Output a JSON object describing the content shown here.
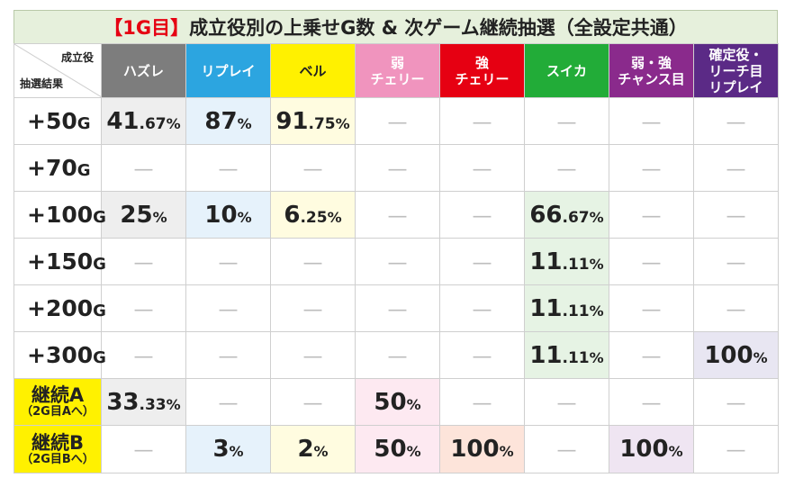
{
  "title": {
    "tag": "【1G目】",
    "text": "成立役別の上乗せG数 & 次ゲーム継続抽選（全設定共通）"
  },
  "corner": {
    "top_label": "成立役",
    "bottom_label": "抽選結果"
  },
  "columns": [
    {
      "label": "ハズレ",
      "bg": "#7d7d7d",
      "fg": "#ffffff",
      "cell_bg": "#eeeeee"
    },
    {
      "label": "リプレイ",
      "bg": "#2ca5e0",
      "fg": "#ffffff",
      "cell_bg": "#e6f2fb"
    },
    {
      "label": "ベル",
      "bg": "#fff100",
      "fg": "#222222",
      "cell_bg": "#fffce0"
    },
    {
      "label": "弱\nチェリー",
      "bg": "#f094be",
      "fg": "#ffffff",
      "cell_bg": "#fde9f1"
    },
    {
      "label": "強\nチェリー",
      "bg": "#e60012",
      "fg": "#ffffff",
      "cell_bg": "#fde4da"
    },
    {
      "label": "スイカ",
      "bg": "#22ac38",
      "fg": "#ffffff",
      "cell_bg": "#e6f3e4"
    },
    {
      "label": "弱・強\nチャンス目",
      "bg": "#8a2a8c",
      "fg": "#ffffff",
      "cell_bg": "#efe5f2"
    },
    {
      "label": "確定役・\nリーチ目\nリプレイ",
      "bg": "#5b2a86",
      "fg": "#ffffff",
      "cell_bg": "#e8e6f2"
    }
  ],
  "colors": {
    "row_label_yellow": "#fff100",
    "dash": "#bdbdbd",
    "grid": "#cfcfcf"
  },
  "rows": [
    {
      "label": "+50",
      "unit": "G",
      "style": "plain",
      "cells": [
        "41.67%",
        "87%",
        "91.75%",
        "",
        "",
        "",
        "",
        ""
      ]
    },
    {
      "label": "+70",
      "unit": "G",
      "style": "plain",
      "cells": [
        "",
        "",
        "",
        "",
        "",
        "",
        "",
        ""
      ]
    },
    {
      "label": "+100",
      "unit": "G",
      "style": "plain",
      "cells": [
        "25%",
        "10%",
        "6.25%",
        "",
        "",
        "66.67%",
        "",
        ""
      ]
    },
    {
      "label": "+150",
      "unit": "G",
      "style": "plain",
      "cells": [
        "",
        "",
        "",
        "",
        "",
        "11.11%",
        "",
        ""
      ]
    },
    {
      "label": "+200",
      "unit": "G",
      "style": "plain",
      "cells": [
        "",
        "",
        "",
        "",
        "",
        "11.11%",
        "",
        ""
      ]
    },
    {
      "label": "+300",
      "unit": "G",
      "style": "plain",
      "cells": [
        "",
        "",
        "",
        "",
        "",
        "11.11%",
        "",
        "100%"
      ]
    },
    {
      "label": "継続A",
      "sub": "（2G目Aへ）",
      "style": "yellow",
      "cells": [
        "33.33%",
        "",
        "",
        "50%",
        "",
        "",
        "",
        ""
      ]
    },
    {
      "label": "継続B",
      "sub": "（2G目Bへ）",
      "style": "yellow",
      "cells": [
        "",
        "3%",
        "2%",
        "50%",
        "100%",
        "",
        "100%",
        ""
      ]
    }
  ],
  "dash_text": "—"
}
